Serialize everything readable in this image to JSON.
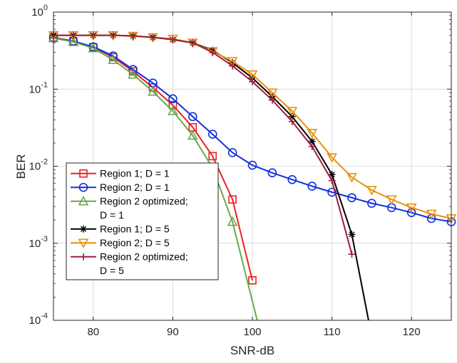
{
  "chart_data": {
    "type": "line",
    "title": "",
    "xlabel": "SNR-dB",
    "ylabel": "BER",
    "xlim": [
      75,
      125
    ],
    "ylim": [
      0.0001,
      1
    ],
    "yscale": "log",
    "grid": true,
    "legend_placement": "bottom-left",
    "x_ticks": [
      80,
      90,
      100,
      110,
      120
    ],
    "x_tick_labels": [
      "80",
      "90",
      "100",
      "110",
      "120"
    ],
    "y_ticks": [
      0.0001,
      0.001,
      0.01,
      0.1,
      1
    ],
    "y_tick_labels": [
      {
        "base": "10",
        "exp": "-4"
      },
      {
        "base": "10",
        "exp": "-3"
      },
      {
        "base": "10",
        "exp": "-2"
      },
      {
        "base": "10",
        "exp": "-1"
      },
      {
        "base": "10",
        "exp": "0"
      }
    ],
    "series": [
      {
        "name": "Region 1; D = 1",
        "legend_lines": [
          "Region 1; D = 1"
        ],
        "color": "#e8231f",
        "marker": "square",
        "x": [
          75,
          77.5,
          80,
          82.5,
          85,
          87.5,
          90,
          92.5,
          95,
          97.5,
          100
        ],
        "y": [
          0.47,
          0.42,
          0.35,
          0.26,
          0.17,
          0.105,
          0.062,
          0.032,
          0.0135,
          0.0037,
          0.00033
        ]
      },
      {
        "name": "Region 2; D = 1",
        "legend_lines": [
          "Region 2; D = 1"
        ],
        "color": "#1030e0",
        "marker": "circle",
        "x": [
          75,
          77.5,
          80,
          82.5,
          85,
          87.5,
          90,
          92.5,
          95,
          97.5,
          100,
          102.5,
          105,
          107.5,
          110,
          112.5,
          115,
          117.5,
          120,
          122.5,
          125
        ],
        "y": [
          0.46,
          0.42,
          0.355,
          0.27,
          0.18,
          0.12,
          0.075,
          0.044,
          0.026,
          0.015,
          0.0103,
          0.0082,
          0.0067,
          0.0055,
          0.0046,
          0.0039,
          0.0033,
          0.0029,
          0.0025,
          0.0021,
          0.0019
        ]
      },
      {
        "name": "Region 2 optimized; D = 1",
        "legend_lines": [
          "Region 2 optimized;",
          "D = 1"
        ],
        "color": "#6aa84f",
        "marker": "triangle-up",
        "x": [
          75,
          77.5,
          80,
          82.5,
          85,
          87.5,
          90,
          92.5,
          95,
          97.5,
          100.6
        ],
        "y": [
          0.46,
          0.41,
          0.34,
          0.24,
          0.155,
          0.093,
          0.052,
          0.025,
          0.0095,
          0.0019,
          0.0001
        ]
      },
      {
        "name": "Region 1; D = 5",
        "legend_lines": [
          "Region 1; D = 5"
        ],
        "color": "#000000",
        "marker": "asterisk",
        "x": [
          75,
          77.5,
          80,
          82.5,
          85,
          87.5,
          90,
          92.5,
          95,
          97.5,
          100,
          102.5,
          105,
          107.5,
          110,
          112.5,
          114.6
        ],
        "y": [
          0.5,
          0.5,
          0.5,
          0.5,
          0.49,
          0.47,
          0.44,
          0.4,
          0.32,
          0.22,
          0.14,
          0.08,
          0.044,
          0.021,
          0.0078,
          0.0013,
          0.0001
        ]
      },
      {
        "name": "Region 2; D = 5",
        "legend_lines": [
          "Region 2; D = 5"
        ],
        "color": "#e8900c",
        "marker": "triangle-down",
        "x": [
          75,
          77.5,
          80,
          82.5,
          85,
          87.5,
          90,
          92.5,
          95,
          97.5,
          100,
          102.5,
          105,
          107.5,
          110,
          112.5,
          115,
          117.5,
          120,
          122.5,
          125
        ],
        "y": [
          0.5,
          0.5,
          0.5,
          0.5,
          0.49,
          0.47,
          0.45,
          0.4,
          0.31,
          0.23,
          0.155,
          0.09,
          0.052,
          0.027,
          0.013,
          0.0072,
          0.0049,
          0.0037,
          0.0029,
          0.0024,
          0.0021
        ]
      },
      {
        "name": "Region 2 optimized; D = 5",
        "legend_lines": [
          "Region 2 optimized;",
          "D = 5"
        ],
        "color": "#a01c3c",
        "marker": "plus",
        "x": [
          75,
          77.5,
          80,
          82.5,
          85,
          87.5,
          90,
          92.5,
          95,
          97.5,
          100,
          102.5,
          105,
          107.5,
          110,
          112.5
        ],
        "y": [
          0.5,
          0.5,
          0.5,
          0.5,
          0.49,
          0.47,
          0.44,
          0.4,
          0.3,
          0.2,
          0.125,
          0.072,
          0.038,
          0.018,
          0.0065,
          0.00072
        ]
      }
    ]
  }
}
